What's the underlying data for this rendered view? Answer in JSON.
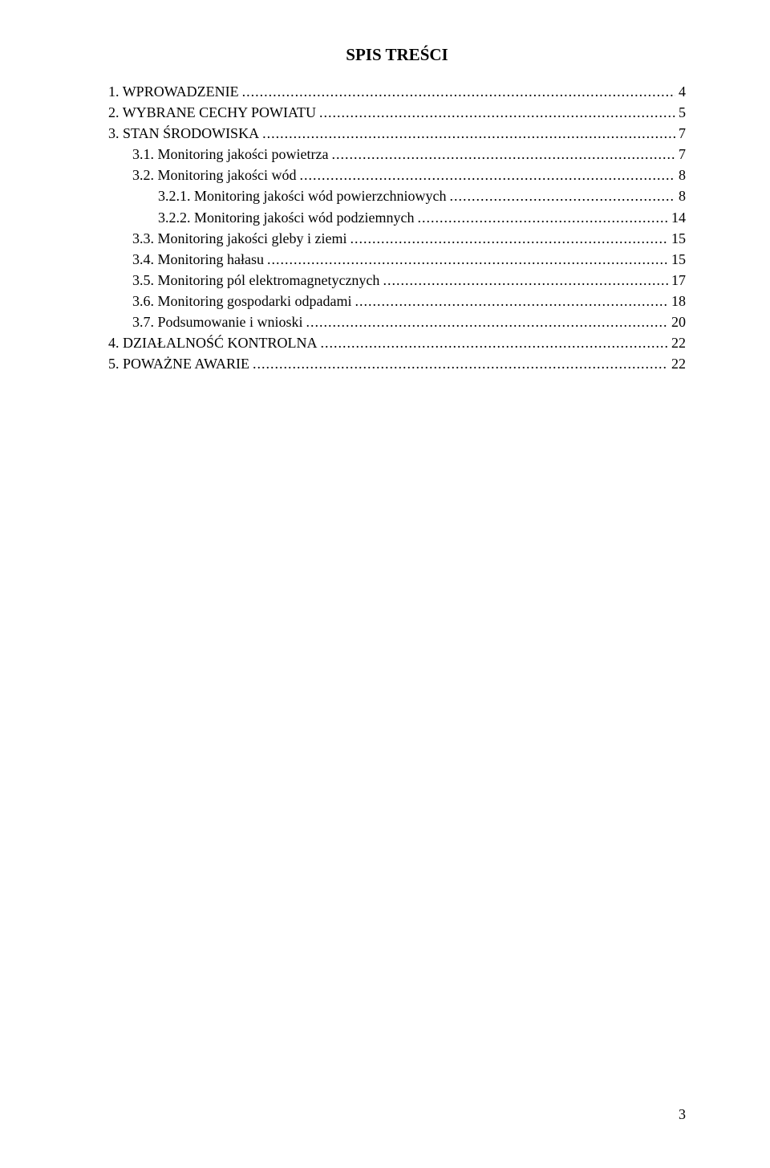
{
  "document": {
    "title": "SPIS TREŚCI",
    "page_number": "3",
    "background_color": "#ffffff",
    "text_color": "#000000",
    "font_family": "Times New Roman",
    "title_fontsize": 21,
    "body_fontsize": 18,
    "toc": [
      {
        "indent": 0,
        "number": "1.",
        "text": "WPROWADZENIE",
        "page": "4",
        "spacer": "   "
      },
      {
        "indent": 0,
        "number": "2.",
        "text": "WYBRANE CECHY POWIATU",
        "page": "5",
        "spacer": "   "
      },
      {
        "indent": 0,
        "number": "3.",
        "text": "STAN ŚRODOWISKA",
        "page": "7",
        "spacer": "   "
      },
      {
        "indent": 1,
        "number": "3.1.",
        "text": "Monitoring jakości powietrza",
        "page": "7",
        "spacer": "   "
      },
      {
        "indent": 1,
        "number": "3.2.",
        "text": "Monitoring jakości wód",
        "page": "8",
        "spacer": "   "
      },
      {
        "indent": 2,
        "number": "3.2.1.",
        "text": "Monitoring jakości wód powierzchniowych",
        "page": "8",
        "spacer": "   "
      },
      {
        "indent": 2,
        "number": "3.2.2.",
        "text": "Monitoring jakości wód podziemnych",
        "page": "14",
        "spacer": "   "
      },
      {
        "indent": 1,
        "number": "3.3.",
        "text": "Monitoring jakości gleby i ziemi",
        "page": "15",
        "spacer": "   "
      },
      {
        "indent": 1,
        "number": "3.4.",
        "text": "Monitoring hałasu",
        "page": "15",
        "spacer": "   "
      },
      {
        "indent": 1,
        "number": "3.5.",
        "text": "Monitoring pól elektromagnetycznych",
        "page": "17",
        "spacer": "   "
      },
      {
        "indent": 1,
        "number": "3.6.",
        "text": "Monitoring gospodarki odpadami",
        "page": "18",
        "spacer": "   "
      },
      {
        "indent": 1,
        "number": "3.7.",
        "text": "Podsumowanie i wnioski",
        "page": "20",
        "spacer": "   "
      },
      {
        "indent": 0,
        "number": "4.",
        "text": "DZIAŁALNOŚĆ KONTROLNA",
        "page": "22",
        "spacer": "   "
      },
      {
        "indent": 0,
        "number": "5.",
        "text": "POWAŻNE AWARIE",
        "page": "22",
        "spacer": "   "
      }
    ]
  }
}
